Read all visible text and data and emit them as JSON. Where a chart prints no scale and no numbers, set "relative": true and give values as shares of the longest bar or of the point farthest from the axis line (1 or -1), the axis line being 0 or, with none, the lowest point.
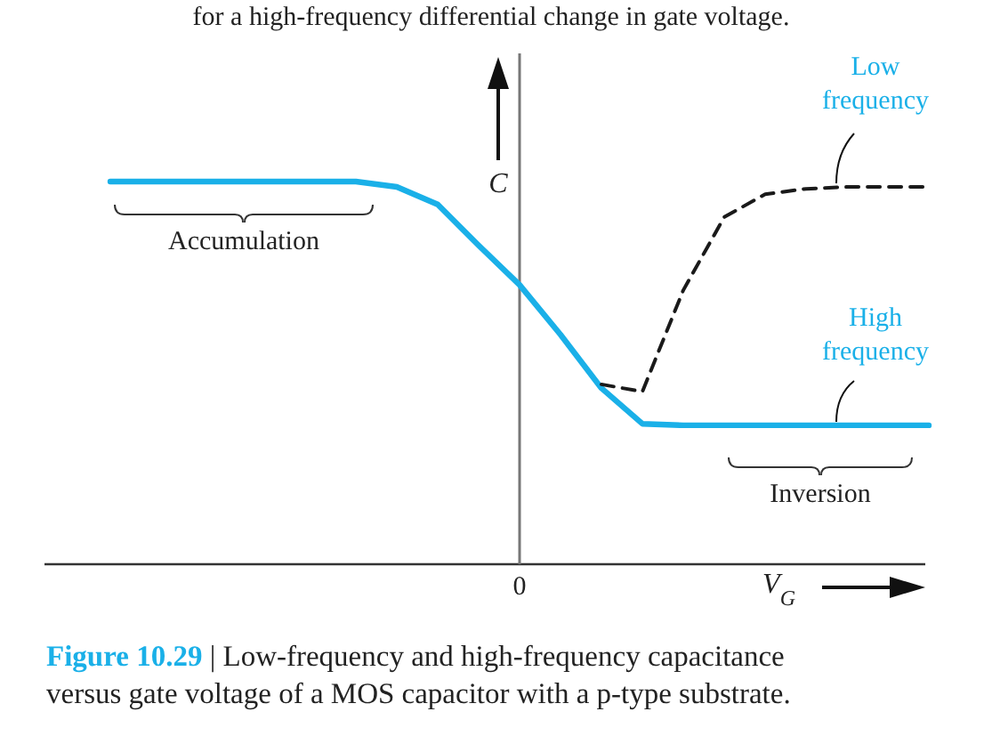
{
  "chart_data": {
    "type": "line",
    "relative": true,
    "xlabel": "V$_{G}$",
    "ylabel": "C",
    "legend": false,
    "categories": [
      null,
      null,
      null,
      null,
      null,
      null,
      null,
      null,
      null,
      null,
      null,
      null,
      null,
      null,
      null,
      null,
      null,
      null,
      null,
      null,
      null
    ],
    "annotations": [
      "for a high-frequency differential change in gate voltage.",
      "0",
      "Accumulation",
      "Inversion",
      "Figure 10.29 | Low-frequency and high-frequency capacitance",
      "versus gate voltage of a MOS capacitor with a p-type substrate."
    ],
    "series": [
      {
        "name": "High frequency",
        "color": "#1ab0e8",
        "line_style": "solid",
        "values": [
          1,
          1,
          1,
          1,
          1,
          1,
          1,
          0.986,
          0.94,
          0.833,
          0.73,
          0.6,
          0.46,
          0.367,
          0.363,
          0.363,
          0.363,
          0.363,
          0.363,
          0.363,
          0.363
        ]
      },
      {
        "name": "Low frequency",
        "color": "#1a1a1a",
        "line_style": "dashed",
        "values": [
          null,
          null,
          null,
          null,
          null,
          null,
          null,
          null,
          null,
          null,
          null,
          null,
          0.47,
          0.451,
          0.716,
          0.907,
          0.967,
          0.981,
          0.986,
          0.986,
          0.986
        ]
      }
    ]
  }
}
